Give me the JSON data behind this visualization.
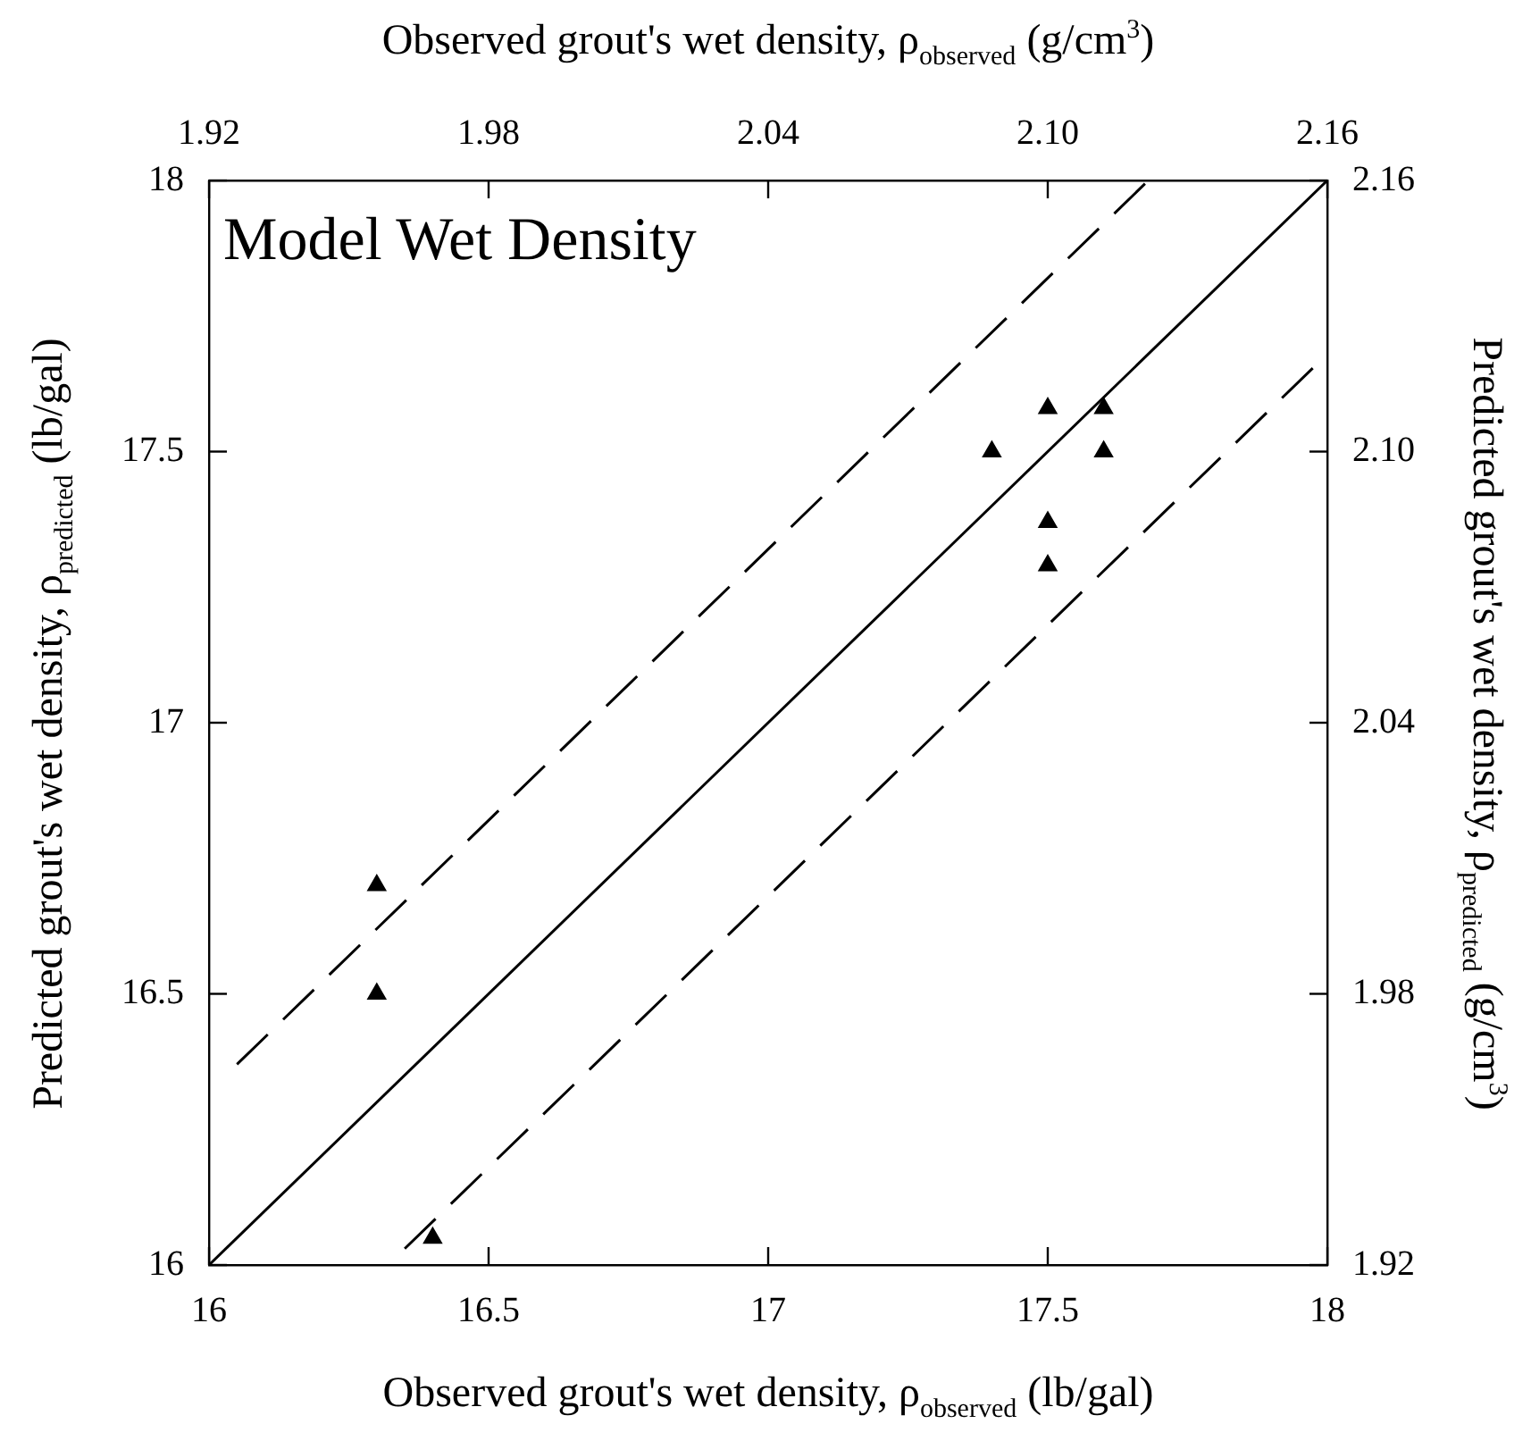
{
  "chart_data": {
    "type": "scatter",
    "title": "Model Wet Density",
    "xlabel": "Observed grout's wet density, ρ$_{observed}$ (lb/gal)",
    "x2label": "Observed grout's wet density, ρ$_{observed}$ (g/cm$^{3}$)",
    "ylabel": "Predicted grout's wet density, ρ$_{predicted}$ (lb/gal)",
    "y2label": "Predicted grout's wet density, ρ$_{predicted}$ (g/cm$^{3}$)",
    "xlim": [
      16,
      18
    ],
    "xticks": [
      16,
      16.5,
      17,
      17.5,
      18
    ],
    "ylim": [
      16,
      18
    ],
    "yticks": [
      16,
      16.5,
      17,
      17.5,
      18
    ],
    "x2lim": [
      1.92,
      2.16
    ],
    "x2ticks": [
      1.92,
      1.98,
      2.04,
      {
        "value": 2.1,
        "label": "2.10"
      },
      2.16
    ],
    "y2lim": [
      1.92,
      2.16
    ],
    "y2ticks": [
      1.92,
      1.98,
      2.04,
      {
        "value": 2.1,
        "label": "2.10"
      },
      2.16
    ],
    "grid": false,
    "legend": false,
    "series": [
      {
        "color": "#000000",
        "marker": "triangle",
        "x": [
          16.3,
          16.3,
          16.4,
          17.5,
          17.6,
          17.4,
          17.6,
          17.5,
          17.5
        ],
        "values": [
          16.7,
          16.5,
          16.05,
          17.58,
          17.58,
          17.5,
          17.5,
          17.37,
          17.29
        ]
      },
      {
        "type": "line",
        "color": "#000000",
        "line_style": "solid",
        "marker": "none",
        "x": [
          16,
          18
        ],
        "values": [
          16,
          18
        ]
      },
      {
        "type": "line",
        "color": "#000000",
        "line_style": "dashed",
        "marker": "none",
        "x": [
          16.05,
          17.68
        ],
        "values": [
          16.37,
          18
        ]
      },
      {
        "type": "line",
        "color": "#000000",
        "line_style": "dashed",
        "marker": "none",
        "x": [
          16.35,
          18
        ],
        "values": [
          16.03,
          17.68
        ]
      }
    ]
  }
}
